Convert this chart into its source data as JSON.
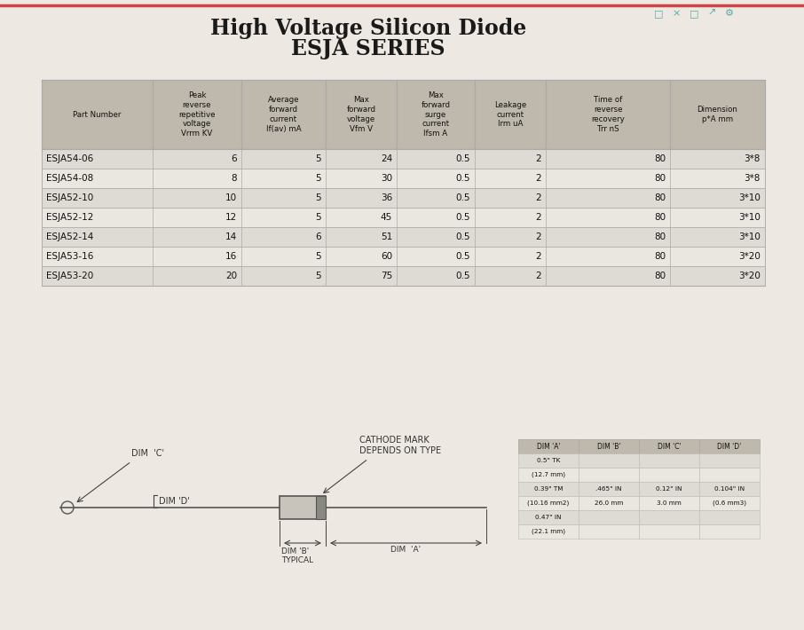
{
  "title_line1": "High Voltage Silicon Diode",
  "title_line2": "ESJA SERIES",
  "title_fontsize": 17,
  "bg_color": "#ede8e2",
  "table_header": [
    "Part Number",
    "Peak\nreverse\nrepetitive\nvoltage\nVrrm KV",
    "Average\nforward\ncurrent\nIf(av) mA",
    "Max\nforward\nvoltage\nVfm V",
    "Max\nforward\nsurge\ncurrent\nIfsm A",
    "Leakage\ncurrent\nIrm uA",
    "Time of\nreverse\nrecovery\nTrr nS",
    "Dimension\np*A mm"
  ],
  "table_rows": [
    [
      "ESJA54-06",
      "6",
      "5",
      "24",
      "0.5",
      "2",
      "80",
      "3*8"
    ],
    [
      "ESJA54-08",
      "8",
      "5",
      "30",
      "0.5",
      "2",
      "80",
      "3*8"
    ],
    [
      "ESJA52-10",
      "10",
      "5",
      "36",
      "0.5",
      "2",
      "80",
      "3*10"
    ],
    [
      "ESJA52-12",
      "12",
      "5",
      "45",
      "0.5",
      "2",
      "80",
      "3*10"
    ],
    [
      "ESJA52-14",
      "14",
      "6",
      "51",
      "0.5",
      "2",
      "80",
      "3*10"
    ],
    [
      "ESJA53-16",
      "16",
      "5",
      "60",
      "0.5",
      "2",
      "80",
      "3*20"
    ],
    [
      "ESJA53-20",
      "20",
      "5",
      "75",
      "0.5",
      "2",
      "80",
      "3*20"
    ]
  ],
  "header_bg": "#bfb8ac",
  "row_bg_even": "#dedad4",
  "row_bg_odd": "#eae6e0",
  "dim_table_header": [
    "DIM 'A'",
    "DIM 'B'",
    "DIM 'C'",
    "DIM 'D'"
  ],
  "dim_table_rows": [
    [
      "0.5\" TK",
      "",
      "",
      ""
    ],
    [
      "(12.7 mm)",
      "",
      "",
      ""
    ],
    [
      "0.39\" TM",
      ".465\" IN",
      "0.12\" IN",
      "0.104\" IN"
    ],
    [
      "(10.16 mm2)",
      "26.0 mm",
      "3.0 mm",
      "(0.6 mm3)"
    ],
    [
      "0.47\" IN",
      "",
      "",
      ""
    ],
    [
      "(22.1 mm)",
      "",
      "",
      ""
    ]
  ],
  "border_color": "#aaaaaa",
  "text_color": "#111111",
  "wire_color": "#555555",
  "dim_label_color": "#333333",
  "icon_symbols": [
    "□",
    "×",
    "□",
    "↗",
    "⚙"
  ],
  "icon_color": "#55aaaa",
  "icon_fontsize": 8
}
